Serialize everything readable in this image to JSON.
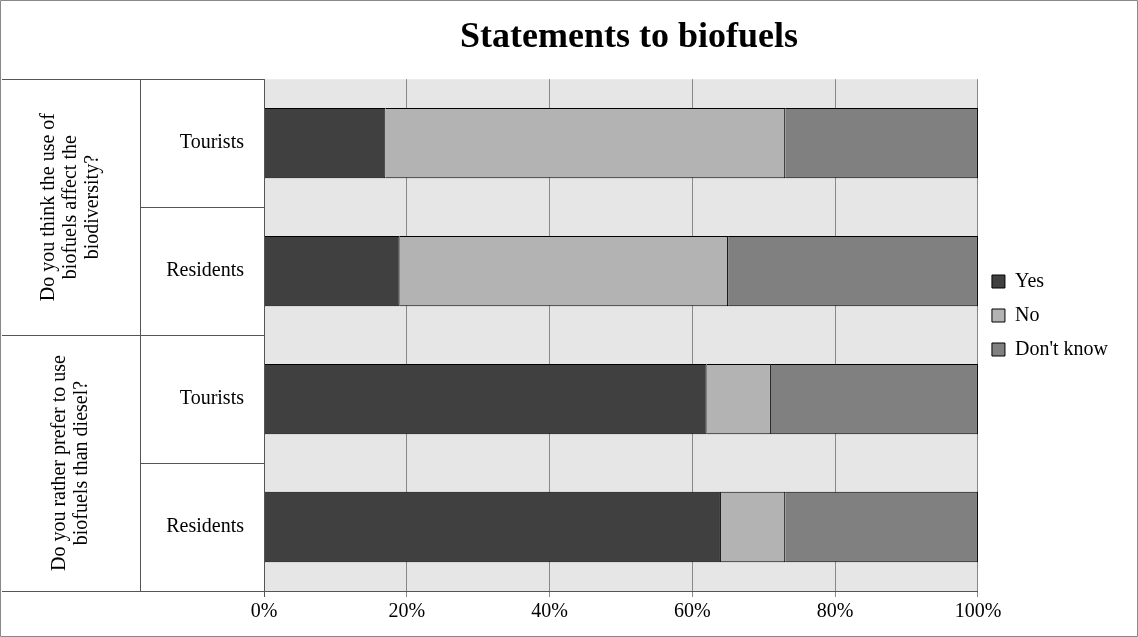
{
  "chart_data": {
    "type": "bar",
    "title": "Statements to biofuels",
    "orientation": "horizontal",
    "stacked": true,
    "categories": [
      "Tourists",
      "Residents",
      "Tourists",
      "Residents"
    ],
    "series": [
      {
        "name": "Yes",
        "color": "#404040",
        "values": [
          17,
          19,
          62,
          64
        ]
      },
      {
        "name": "No",
        "color": "#b3b3b3",
        "values": [
          56,
          46,
          9,
          9
        ]
      },
      {
        "name": "Don't know",
        "color": "#808080",
        "values": [
          27,
          35,
          29,
          27
        ]
      }
    ],
    "xlim": [
      0,
      100
    ],
    "xticks": [
      {
        "value": 0,
        "label": "0%"
      },
      {
        "value": 20,
        "label": "20%"
      },
      {
        "value": 40,
        "label": "40%"
      },
      {
        "value": 60,
        "label": "60%"
      },
      {
        "value": 80,
        "label": "80%"
      },
      {
        "value": 100,
        "label": "100%"
      }
    ],
    "annotations": [
      "Do you think the use of biofuels affect the biodiversity?",
      "Do you rather prefer to use biofuels than diesel?"
    ],
    "grid": "x",
    "legend": "right"
  }
}
